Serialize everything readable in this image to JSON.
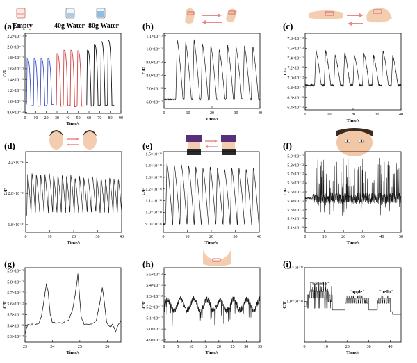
{
  "header": {
    "panel_a_labels": [
      "Empty",
      "40g Water",
      "80g Water"
    ]
  },
  "colors": {
    "line": "#1a1a1a",
    "blue": "#3a4fc4",
    "red": "#d14040",
    "black": "#111111",
    "skin": "#f4cdb0",
    "arrow": "#e98a86",
    "pants": "#5a2f7a",
    "box": "#c85050"
  },
  "chart_data": [
    {
      "id": "a",
      "type": "line",
      "panel_letter": "(a)",
      "xlabel": "Time/s",
      "ylabel": "C/F",
      "xlim": [
        0,
        90
      ],
      "ylim": [
        0.78,
        2.25
      ],
      "x_ticks": [
        "0",
        "10",
        "20",
        "30",
        "40",
        "50",
        "60",
        "70",
        "80",
        "90"
      ],
      "x_tick_values": [
        0,
        10,
        20,
        30,
        40,
        50,
        60,
        70,
        80,
        90
      ],
      "y_ticks": [
        "8.0×10⁻¹²",
        "1.0×10⁻¹¹",
        "1.2×10⁻¹¹",
        "1.4×10⁻¹¹",
        "1.6×10⁻¹¹",
        "1.8×10⁻¹¹",
        "2.0×10⁻¹¹",
        "2.2×10⁻¹¹"
      ],
      "y_tick_values": [
        0.8,
        1.0,
        1.2,
        1.4,
        1.6,
        1.8,
        2.0,
        2.2
      ],
      "series": [
        {
          "name": "Empty",
          "color": "blue",
          "peaks": [
            [
              2,
              1.78,
              0.92
            ],
            [
              8.5,
              1.79,
              0.91
            ],
            [
              15,
              1.79,
              0.92
            ],
            [
              21.5,
              1.79,
              0.94
            ]
          ]
        },
        {
          "name": "40g Water",
          "color": "red",
          "peaks": [
            [
              30,
              1.88,
              0.91
            ],
            [
              36.5,
              1.94,
              0.92
            ],
            [
              43,
              1.94,
              0.9
            ],
            [
              49.5,
              1.93,
              0.91
            ]
          ]
        },
        {
          "name": "80g Water",
          "color": "black",
          "peaks": [
            [
              58.5,
              1.94,
              0.91
            ],
            [
              65,
              2.05,
              0.92
            ],
            [
              71.5,
              2.1,
              0.92
            ],
            [
              78,
              2.12,
              0.92
            ]
          ]
        }
      ]
    },
    {
      "id": "b",
      "type": "line",
      "panel_letter": "(b)",
      "xlabel": "Time/s",
      "ylabel": "C/F",
      "xlim": [
        0,
        40
      ],
      "ylim": [
        0.55,
        1.12
      ],
      "x_ticks": [
        "0",
        "10",
        "20",
        "30",
        "40"
      ],
      "x_tick_values": [
        0,
        10,
        20,
        30,
        40
      ],
      "y_ticks": [
        "6.0×10⁻¹²",
        "7.0×10⁻¹²",
        "8.0×10⁻¹²",
        "9.0×10⁻¹²",
        "1.0×10⁻¹¹",
        "1.1×10⁻¹¹"
      ],
      "y_tick_values": [
        0.6,
        0.7,
        0.8,
        0.9,
        1.0,
        1.1
      ],
      "baseline": 0.62,
      "peaks_x": [
        5.5,
        9,
        12.5,
        16,
        19.5,
        23,
        26.5,
        30,
        33.5,
        37
      ],
      "peaks_y": [
        1.07,
        1.05,
        1.07,
        1.04,
        1.03,
        1.0,
        1.03,
        1.02,
        1.03,
        1.02
      ]
    },
    {
      "id": "c",
      "type": "line",
      "panel_letter": "(c)",
      "xlabel": "Time/s",
      "ylabel": "C/F",
      "xlim": [
        0,
        40
      ],
      "ylim": [
        0.635,
        0.79
      ],
      "x_ticks": [
        "0",
        "10",
        "20",
        "30",
        "40"
      ],
      "x_tick_values": [
        0,
        10,
        20,
        30,
        40
      ],
      "y_ticks": [
        "6.4×10⁻¹²",
        "6.6×10⁻¹²",
        "6.8×10⁻¹²",
        "7.0×10⁻¹²",
        "7.2×10⁻¹²",
        "7.4×10⁻¹²",
        "7.6×10⁻¹²",
        "7.8×10⁻¹²"
      ],
      "y_tick_values": [
        0.64,
        0.66,
        0.68,
        0.7,
        0.72,
        0.74,
        0.76,
        0.78
      ],
      "baseline": 0.685,
      "peaks_x": [
        4.5,
        8.5,
        12.5,
        16.5,
        20.5,
        24.5,
        28.5,
        32.5,
        36.5
      ],
      "peaks_y": [
        0.755,
        0.755,
        0.745,
        0.75,
        0.745,
        0.75,
        0.745,
        0.755,
        0.745
      ]
    },
    {
      "id": "d",
      "type": "line",
      "panel_letter": "(d)",
      "xlabel": "Time/s",
      "ylabel": "C/F",
      "xlim": [
        0,
        40
      ],
      "ylim": [
        1.75,
        2.27
      ],
      "x_ticks": [
        "0",
        "10",
        "20",
        "30",
        "40"
      ],
      "x_tick_values": [
        0,
        10,
        20,
        30,
        40
      ],
      "y_ticks": [
        "1.8×10⁻¹¹",
        "2.0×10⁻¹¹",
        "2.2×10⁻¹¹"
      ],
      "y_tick_values": [
        1.8,
        2.0,
        2.2
      ],
      "baseline": 1.86,
      "peaks_x": [
        0.8,
        2.6,
        4.4,
        6.2,
        8,
        9.8,
        11.6,
        13.4,
        15.2,
        17,
        18.8,
        20.6,
        22.4,
        24.2,
        26,
        27.8,
        29.6,
        31.4,
        33.2,
        35,
        36.8,
        38.6
      ],
      "peaks_y": [
        2.12,
        2.13,
        2.12,
        2.12,
        2.12,
        2.13,
        2.11,
        2.12,
        2.12,
        2.11,
        2.12,
        2.1,
        2.11,
        2.1,
        2.1,
        2.11,
        2.1,
        2.1,
        2.09,
        2.1,
        2.09,
        2.09
      ]
    },
    {
      "id": "e",
      "type": "line",
      "panel_letter": "(e)",
      "xlabel": "Time/s",
      "ylabel": "C/F",
      "xlim": [
        0,
        40
      ],
      "ylim": [
        0.83,
        1.52
      ],
      "x_ticks": [
        "0",
        "10",
        "20",
        "30",
        "40"
      ],
      "x_tick_values": [
        0,
        10,
        20,
        30,
        40
      ],
      "y_ticks": [
        "9.0×10⁻¹²",
        "1.0×10⁻¹¹",
        "1.1×10⁻¹¹",
        "1.2×10⁻¹¹",
        "1.3×10⁻¹¹",
        "1.4×10⁻¹¹",
        "1.5×10⁻¹¹"
      ],
      "y_tick_values": [
        0.9,
        1.0,
        1.1,
        1.2,
        1.3,
        1.4,
        1.5
      ],
      "baseline": 0.9,
      "peaks_x": [
        1.5,
        4.5,
        7.5,
        10.5,
        13.5,
        16.5,
        19.5,
        22.5,
        25.5,
        28.5,
        31.5,
        34.5,
        37.5
      ],
      "peaks_y": [
        1.42,
        1.41,
        1.41,
        1.4,
        1.39,
        1.38,
        1.39,
        1.38,
        1.37,
        1.38,
        1.38,
        1.37,
        1.38
      ]
    },
    {
      "id": "f",
      "type": "line",
      "panel_letter": "(f)",
      "xlabel": "Time/s",
      "ylabel": "C/F",
      "xlim": [
        0,
        50
      ],
      "ylim": [
        0.505,
        0.595
      ],
      "x_ticks": [
        "0",
        "10",
        "20",
        "30",
        "40",
        "50"
      ],
      "x_tick_values": [
        0,
        10,
        20,
        30,
        40,
        50
      ],
      "y_ticks": [
        "5.1×10⁻¹²",
        "5.2×10⁻¹²",
        "5.3×10⁻¹²",
        "5.4×10⁻¹²",
        "5.5×10⁻¹²",
        "5.6×10⁻¹²",
        "5.7×10⁻¹²",
        "5.8×10⁻¹²",
        "5.9×10⁻¹²"
      ],
      "y_tick_values": [
        0.51,
        0.52,
        0.53,
        0.54,
        0.55,
        0.56,
        0.57,
        0.58,
        0.59
      ],
      "baseline": 0.543
    },
    {
      "id": "g",
      "type": "line",
      "panel_letter": "(g)",
      "xlabel": "Time/s",
      "ylabel": "C/F",
      "xlim": [
        23,
        26.5
      ],
      "ylim": [
        0.525,
        0.593
      ],
      "x_ticks": [
        "23",
        "24",
        "25",
        "26"
      ],
      "x_tick_values": [
        23,
        24,
        25,
        26
      ],
      "y_ticks": [
        "5.3×10⁻¹²",
        "5.4×10⁻¹²",
        "5.5×10⁻¹²",
        "5.6×10⁻¹²",
        "5.7×10⁻¹²",
        "5.8×10⁻¹²",
        "5.9×10⁻¹²"
      ],
      "y_tick_values": [
        0.53,
        0.54,
        0.55,
        0.56,
        0.57,
        0.58,
        0.59
      ],
      "points": [
        [
          23,
          0.533
        ],
        [
          23.1,
          0.541
        ],
        [
          23.3,
          0.541
        ],
        [
          23.5,
          0.542
        ],
        [
          23.6,
          0.548
        ],
        [
          23.72,
          0.568
        ],
        [
          23.78,
          0.578
        ],
        [
          23.85,
          0.57
        ],
        [
          23.92,
          0.55
        ],
        [
          24.0,
          0.543
        ],
        [
          24.3,
          0.542
        ],
        [
          24.6,
          0.545
        ],
        [
          24.75,
          0.556
        ],
        [
          24.85,
          0.572
        ],
        [
          24.93,
          0.587
        ],
        [
          24.98,
          0.57
        ],
        [
          25.05,
          0.548
        ],
        [
          25.15,
          0.542
        ],
        [
          25.4,
          0.541
        ],
        [
          25.6,
          0.544
        ],
        [
          25.72,
          0.56
        ],
        [
          25.82,
          0.575
        ],
        [
          25.9,
          0.56
        ],
        [
          25.98,
          0.543
        ],
        [
          26.1,
          0.539
        ],
        [
          26.2,
          0.541
        ],
        [
          26.3,
          0.535
        ],
        [
          26.5,
          0.545
        ]
      ]
    },
    {
      "id": "h",
      "type": "line",
      "panel_letter": "(h)",
      "xlabel": "Time/s",
      "ylabel": "C/F",
      "xlim": [
        0,
        35
      ],
      "ylim": [
        0.488,
        0.556
      ],
      "x_ticks": [
        "0",
        "5",
        "10",
        "15",
        "20",
        "25",
        "30",
        "35"
      ],
      "x_tick_values": [
        0,
        5,
        10,
        15,
        20,
        25,
        30,
        35
      ],
      "y_ticks": [
        "4.9×10⁻¹²",
        "5.0×10⁻¹²",
        "5.1×10⁻¹²",
        "5.2×10⁻¹²",
        "5.3×10⁻¹²",
        "5.4×10⁻¹²",
        "5.5×10⁻¹²"
      ],
      "y_tick_values": [
        0.49,
        0.5,
        0.51,
        0.52,
        0.53,
        0.54,
        0.55
      ],
      "baseline": 0.522
    },
    {
      "id": "i",
      "type": "line",
      "panel_letter": "(i)",
      "xlabel": "Time/s",
      "ylabel": "C/F",
      "xlim": [
        0,
        45
      ],
      "ylim": [
        0.88,
        1.1
      ],
      "x_ticks": [
        "0",
        "10",
        "20",
        "30",
        "40"
      ],
      "x_tick_values": [
        0,
        10,
        20,
        30,
        40
      ],
      "y_ticks": [
        "1.0×10⁻¹¹",
        "1.1×10⁻¹¹"
      ],
      "y_tick_values": [
        1.0,
        1.1
      ],
      "annotations": [
        {
          "text": "\"banana\"",
          "x": 7,
          "y": 1.05
        },
        {
          "text": "\"apple\"",
          "x": 24.5,
          "y": 1.025
        },
        {
          "text": "\"hello\"",
          "x": 38,
          "y": 1.025
        }
      ]
    }
  ]
}
